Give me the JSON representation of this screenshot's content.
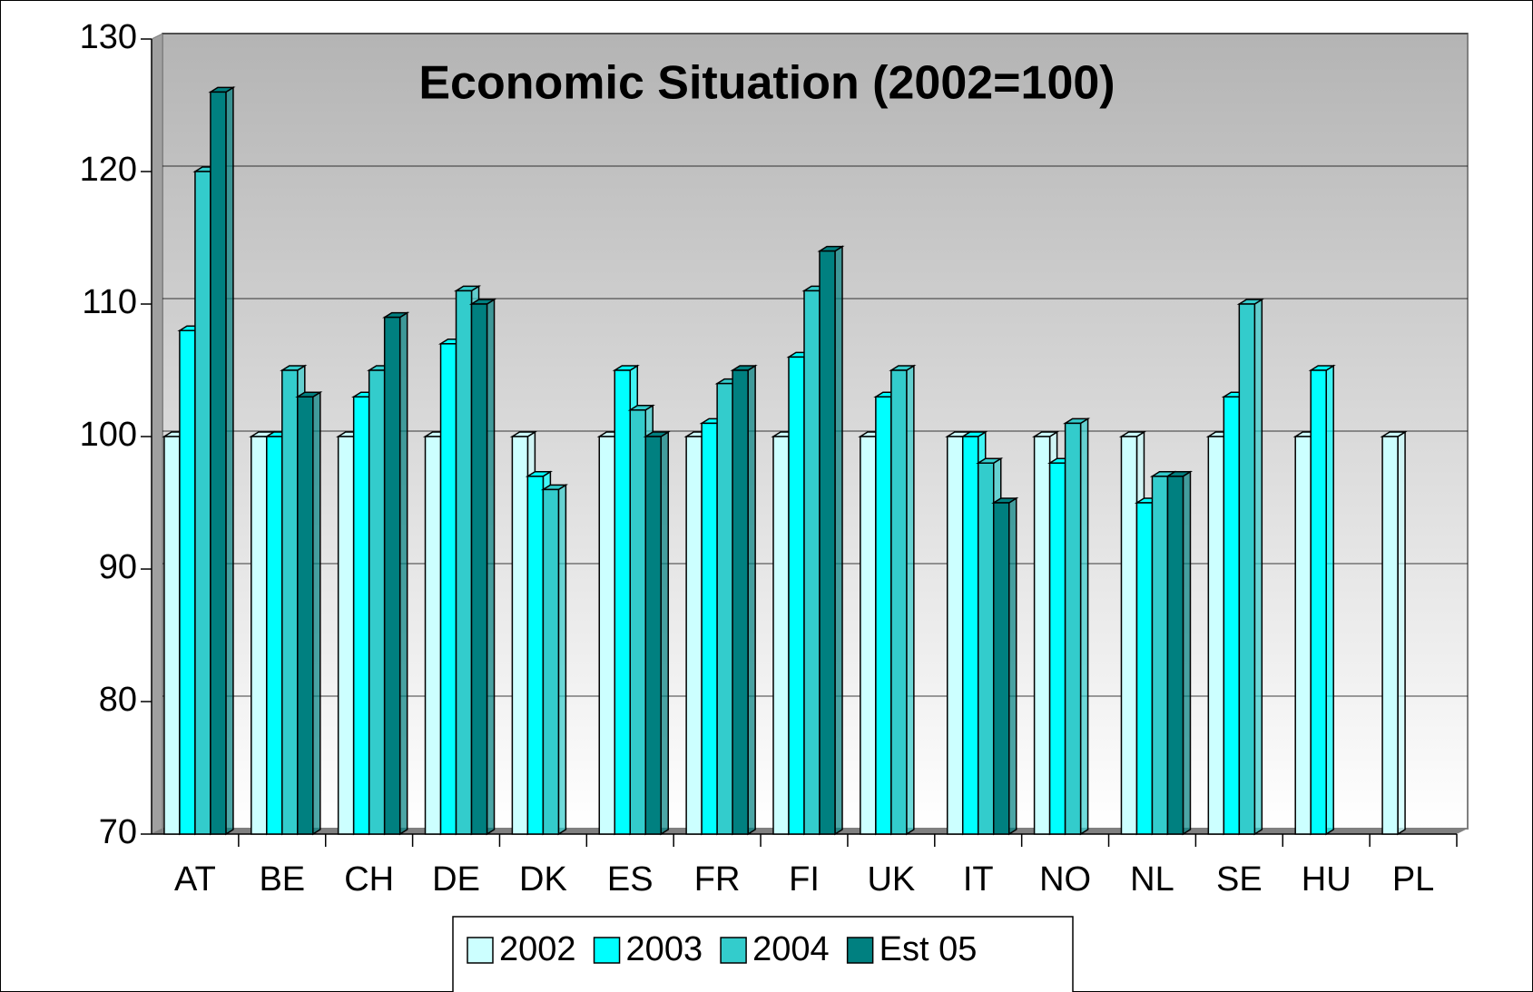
{
  "chart_data": {
    "type": "bar",
    "title": "Economic Situation (2002=100)",
    "categories": [
      "AT",
      "BE",
      "CH",
      "DE",
      "DK",
      "ES",
      "FR",
      "FI",
      "UK",
      "IT",
      "NO",
      "NL",
      "SE",
      "HU",
      "PL"
    ],
    "series": [
      {
        "name": "2002",
        "color": "#ccffff",
        "values": [
          100,
          100,
          100,
          100,
          100,
          100,
          100,
          100,
          100,
          100,
          100,
          100,
          100,
          100,
          100
        ]
      },
      {
        "name": "2003",
        "color": "#00ffff",
        "values": [
          108,
          100,
          103,
          107,
          97,
          105,
          101,
          106,
          103,
          100,
          98,
          95,
          103,
          105,
          null
        ]
      },
      {
        "name": "2004",
        "color": "#33cccc",
        "values": [
          120,
          105,
          105,
          111,
          96,
          102,
          104,
          111,
          105,
          98,
          101,
          97,
          110,
          null,
          null
        ]
      },
      {
        "name": "Est 05",
        "color": "#008080",
        "values": [
          126,
          103,
          109,
          110,
          null,
          100,
          105,
          114,
          null,
          95,
          null,
          97,
          null,
          null,
          null
        ]
      }
    ],
    "ylim": [
      70,
      130
    ],
    "yticks": [
      70,
      80,
      90,
      100,
      110,
      120,
      130
    ],
    "grid": true,
    "legend": "bottom"
  }
}
